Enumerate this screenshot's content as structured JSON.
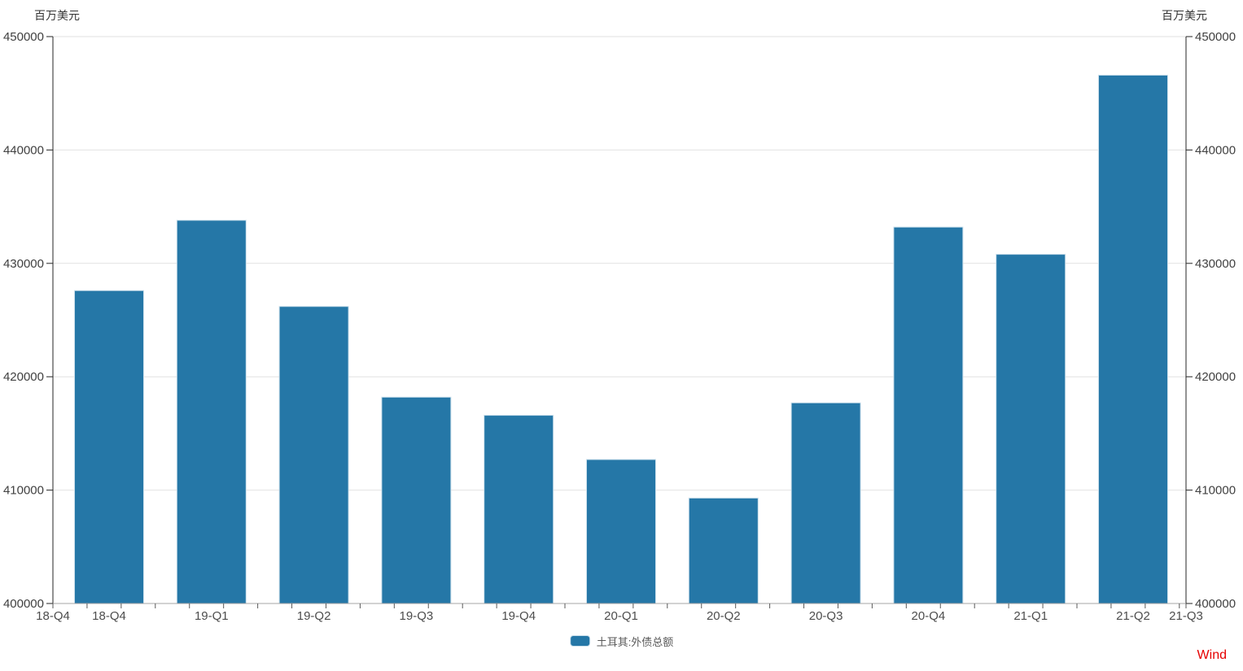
{
  "units": {
    "left": "百万美元",
    "right": "百万美元"
  },
  "legend": {
    "label": "土耳其:外债总额"
  },
  "watermark": "Wind",
  "colors": {
    "bar": "#2577A7",
    "bar_edge": "#CCE0EC",
    "grid": "#E2E2E2",
    "side_axis": "#262626",
    "bottom_axis": "#A6A6A6",
    "x_tick": "#595959",
    "y_tick": "#262626",
    "watermark": "#E60000"
  },
  "chart_data": {
    "type": "bar",
    "title": "",
    "series_name": "土耳其:外债总额",
    "categories": [
      "18-Q4",
      "19-Q1",
      "19-Q2",
      "19-Q3",
      "19-Q4",
      "20-Q1",
      "20-Q2",
      "20-Q3",
      "20-Q4",
      "21-Q1",
      "21-Q2"
    ],
    "values": [
      427600,
      433800,
      426200,
      418200,
      416600,
      412700,
      409300,
      417700,
      433200,
      430800,
      446600
    ],
    "x_edge_labels": [
      "18-Q4",
      "21-Q3"
    ],
    "ylabel": "百万美元",
    "ylim": [
      400000,
      450000
    ],
    "ytick_step": 10000,
    "yticks": [
      400000,
      410000,
      420000,
      430000,
      440000,
      450000
    ],
    "grid": true,
    "dual_y_axis": true,
    "legend_position": "bottom-center"
  }
}
